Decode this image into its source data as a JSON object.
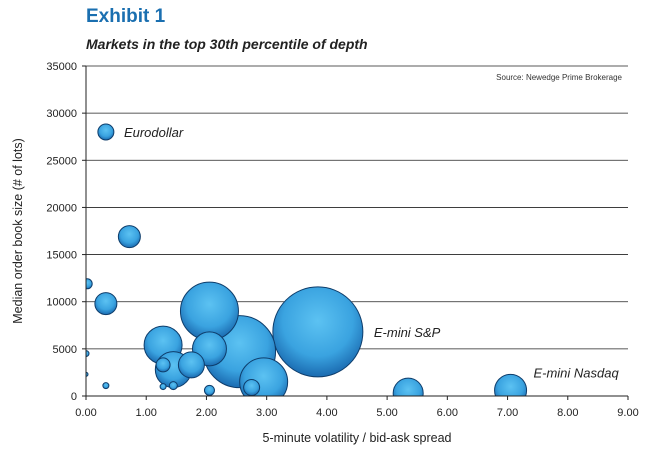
{
  "header": {
    "exhibit": "Exhibit 1",
    "subtitle": "Markets in the top 30th percentile of depth"
  },
  "chart_data": {
    "type": "scatter",
    "title": "Markets in the top 30th percentile of depth",
    "source": "Source: Newedge Prime Brokerage",
    "xlabel": "5-minute volatility / bid-ask spread",
    "ylabel": "Median order book size (# of lots)",
    "xlim": [
      0,
      9
    ],
    "ylim": [
      0,
      35000
    ],
    "xticks": [
      "0.00",
      "1.00",
      "2.00",
      "3.00",
      "4.00",
      "5.00",
      "6.00",
      "7.00",
      "8.00",
      "9.00"
    ],
    "yticks": [
      "0",
      "5000",
      "10000",
      "15000",
      "20000",
      "25000",
      "30000",
      "35000"
    ],
    "grid": true,
    "bubble_color": "#3aa3e0",
    "points": [
      {
        "x": 0.33,
        "y": 28000,
        "r": 8
      },
      {
        "x": 0.72,
        "y": 16900,
        "r": 11
      },
      {
        "x": 0.02,
        "y": 11900,
        "r": 5
      },
      {
        "x": 0.33,
        "y": 9800,
        "r": 11
      },
      {
        "x": 0.0,
        "y": 4500,
        "r": 3
      },
      {
        "x": 0.0,
        "y": 2300,
        "r": 2
      },
      {
        "x": 0.33,
        "y": 1100,
        "r": 3
      },
      {
        "x": 1.28,
        "y": 5400,
        "r": 19
      },
      {
        "x": 1.28,
        "y": 3300,
        "r": 7
      },
      {
        "x": 1.28,
        "y": 1000,
        "r": 3
      },
      {
        "x": 1.45,
        "y": 2800,
        "r": 18
      },
      {
        "x": 1.45,
        "y": 1100,
        "r": 4
      },
      {
        "x": 1.75,
        "y": 3300,
        "r": 13
      },
      {
        "x": 2.05,
        "y": 9000,
        "r": 29
      },
      {
        "x": 2.05,
        "y": 5000,
        "r": 17
      },
      {
        "x": 2.05,
        "y": 600,
        "r": 5
      },
      {
        "x": 2.55,
        "y": 4700,
        "r": 36
      },
      {
        "x": 2.75,
        "y": 900,
        "r": 8
      },
      {
        "x": 2.95,
        "y": 1500,
        "r": 24
      },
      {
        "x": 3.85,
        "y": 6800,
        "r": 45
      },
      {
        "x": 5.35,
        "y": 300,
        "r": 15
      },
      {
        "x": 7.05,
        "y": 600,
        "r": 16
      }
    ],
    "annotations": [
      {
        "text": "Eurodollar",
        "x": 0.63,
        "y": 28000
      },
      {
        "text": "E-mini S&P",
        "x": 4.78,
        "y": 6800
      },
      {
        "text": "E-mini Nasdaq",
        "x": 7.43,
        "y": 2500
      }
    ]
  }
}
